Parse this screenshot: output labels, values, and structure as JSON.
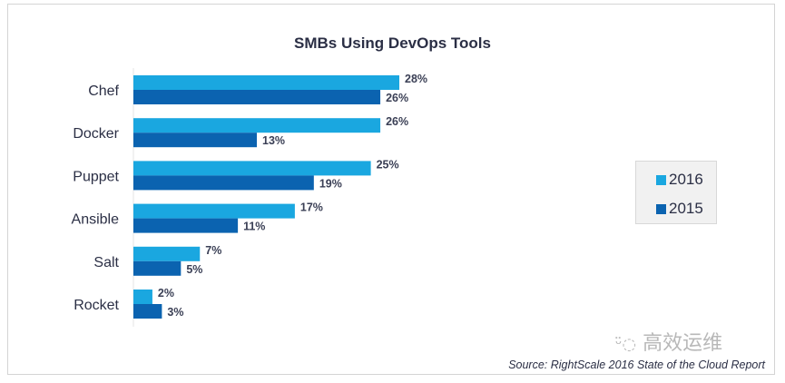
{
  "chart_data": {
    "type": "bar",
    "orientation": "horizontal",
    "title": "SMBs Using DevOps Tools",
    "categories": [
      "Chef",
      "Docker",
      "Puppet",
      "Ansible",
      "Salt",
      "Rocket"
    ],
    "series": [
      {
        "name": "2016",
        "color": "#1aa7e0",
        "values": [
          28,
          26,
          25,
          17,
          7,
          2
        ]
      },
      {
        "name": "2015",
        "color": "#0b63b0",
        "values": [
          26,
          13,
          19,
          11,
          5,
          3
        ]
      }
    ],
    "value_suffix": "%",
    "xlim": [
      0,
      30
    ],
    "grid": false,
    "legend_position": "right"
  },
  "source": "Source: RightScale 2016 State of the Cloud Report",
  "watermark": "高效运维"
}
